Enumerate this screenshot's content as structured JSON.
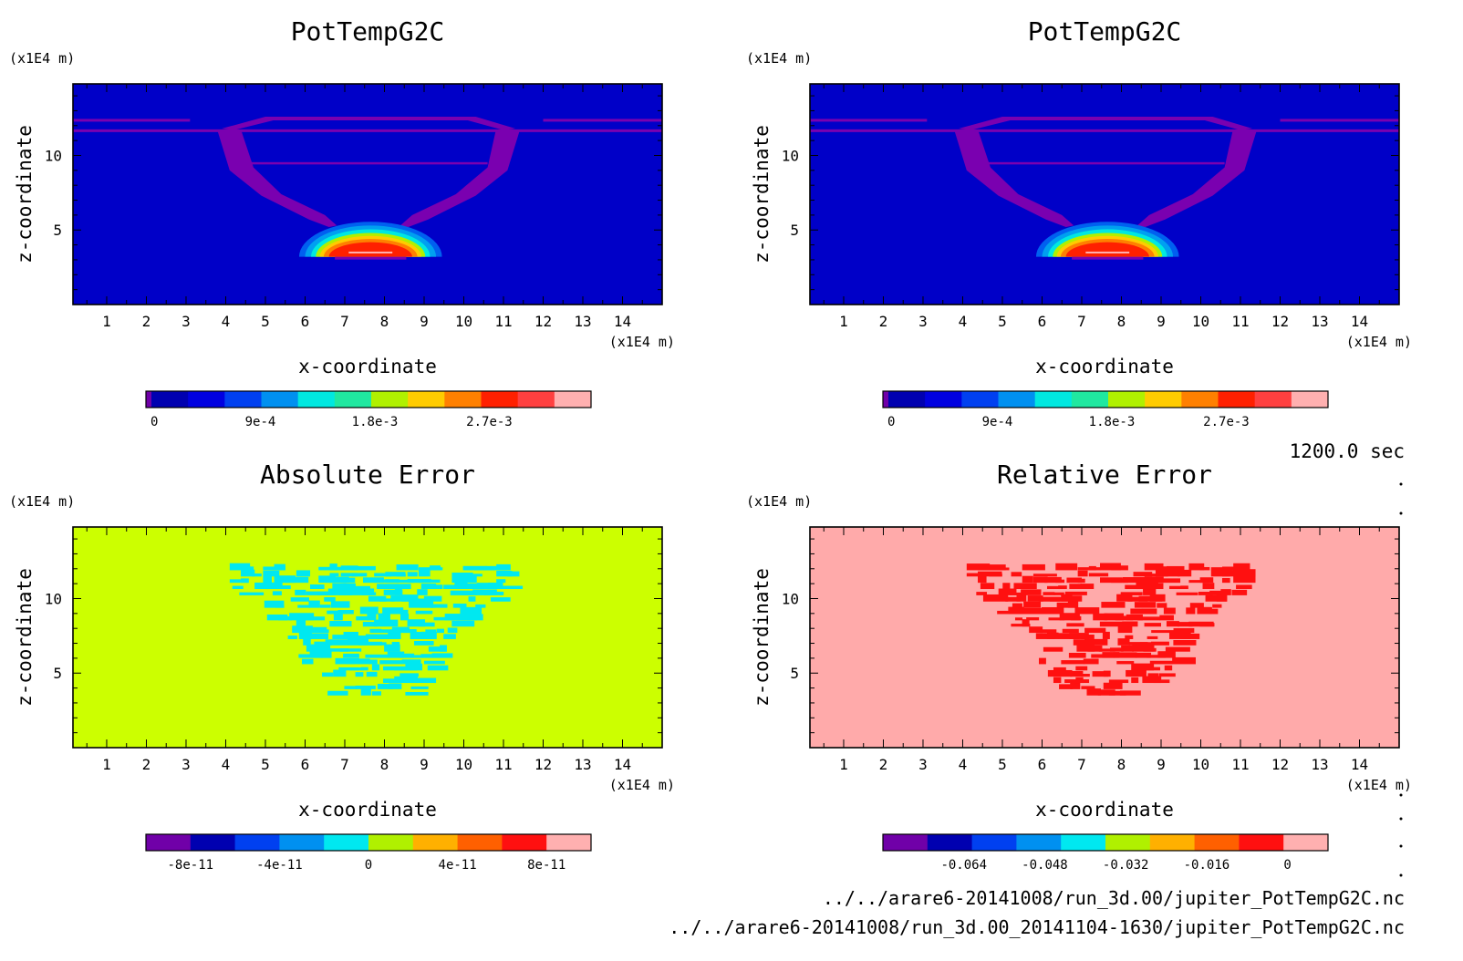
{
  "figure": {
    "time_label": "1200.0 sec",
    "files": [
      "../../arare6-20141008/run_3d.00/jupiter_PotTempG2C.nc",
      "../../arare6-20141008/run_3d.00_20141104-1630/jupiter_PotTempG2C.nc"
    ]
  },
  "chart_data": [
    {
      "type": "heatmap",
      "title": "PotTempG2C",
      "xlabel": "x-coordinate",
      "ylabel": "z-coordinate",
      "x_unit": "(x1E4 m)",
      "z_unit": "(x1E4 m)",
      "xlim": [
        0.15,
        15.0
      ],
      "ylim": [
        0.0,
        14.8
      ],
      "xticks": [
        1,
        2,
        3,
        4,
        5,
        6,
        7,
        8,
        9,
        10,
        11,
        12,
        13,
        14
      ],
      "yticks": [
        5,
        10
      ],
      "background": "#0000c8",
      "field": "plume",
      "colorbar": {
        "colors": [
          "#7000a8",
          "#0000b0",
          "#0000e0",
          "#0040f0",
          "#0090f0",
          "#00e8e0",
          "#20e8a0",
          "#b0f000",
          "#ffcc00",
          "#ff8000",
          "#ff2000",
          "#ff4040",
          "#ffb0b0"
        ],
        "tick_values": [
          "0",
          "9e-4",
          "1.8e-3",
          "2.7e-3"
        ],
        "range": [
          0,
          0.0035
        ]
      }
    },
    {
      "type": "heatmap",
      "title": "PotTempG2C",
      "xlabel": "x-coordinate",
      "ylabel": "z-coordinate",
      "x_unit": "(x1E4 m)",
      "z_unit": "(x1E4 m)",
      "xlim": [
        0.15,
        15.0
      ],
      "ylim": [
        0.0,
        14.8
      ],
      "xticks": [
        1,
        2,
        3,
        4,
        5,
        6,
        7,
        8,
        9,
        10,
        11,
        12,
        13,
        14
      ],
      "yticks": [
        5,
        10
      ],
      "background": "#0000c8",
      "field": "plume",
      "colorbar": {
        "colors": [
          "#7000a8",
          "#0000b0",
          "#0000e0",
          "#0040f0",
          "#0090f0",
          "#00e8e0",
          "#20e8a0",
          "#b0f000",
          "#ffcc00",
          "#ff8000",
          "#ff2000",
          "#ff4040",
          "#ffb0b0"
        ],
        "tick_values": [
          "0",
          "9e-4",
          "1.8e-3",
          "2.7e-3"
        ],
        "range": [
          0,
          0.0035
        ]
      }
    },
    {
      "type": "heatmap",
      "title": "Absolute Error",
      "xlabel": "x-coordinate",
      "ylabel": "z-coordinate",
      "x_unit": "(x1E4 m)",
      "z_unit": "(x1E4 m)",
      "xlim": [
        0.15,
        15.0
      ],
      "ylim": [
        0.0,
        14.8
      ],
      "xticks": [
        1,
        2,
        3,
        4,
        5,
        6,
        7,
        8,
        9,
        10,
        11,
        12,
        13,
        14
      ],
      "yticks": [
        5,
        10
      ],
      "background": "#ccff00",
      "field": "speckle",
      "speckle_color": "#00e8f0",
      "colorbar": {
        "colors": [
          "#7000a8",
          "#0000b0",
          "#0040f0",
          "#0090f0",
          "#00e8f0",
          "#b0f000",
          "#ffb000",
          "#ff6000",
          "#ff1010",
          "#ffb0b0"
        ],
        "tick_values": [
          "-8e-11",
          "-4e-11",
          "0",
          "4e-11",
          "8e-11"
        ],
        "range": [
          -1e-10,
          1e-10
        ]
      }
    },
    {
      "type": "heatmap",
      "title": "Relative Error",
      "xlabel": "x-coordinate",
      "ylabel": "z-coordinate",
      "x_unit": "(x1E4 m)",
      "z_unit": "(x1E4 m)",
      "xlim": [
        0.15,
        15.0
      ],
      "ylim": [
        0.0,
        14.8
      ],
      "xticks": [
        1,
        2,
        3,
        4,
        5,
        6,
        7,
        8,
        9,
        10,
        11,
        12,
        13,
        14
      ],
      "yticks": [
        5,
        10
      ],
      "background": "#ffaaaa",
      "field": "speckle",
      "speckle_color": "#ff1010",
      "colorbar": {
        "colors": [
          "#7000a8",
          "#0000b0",
          "#0040f0",
          "#0090f0",
          "#00e8f0",
          "#b0f000",
          "#ffb000",
          "#ff6000",
          "#ff1010",
          "#ffb0b0"
        ],
        "tick_values": [
          "-0.064",
          "-0.048",
          "-0.032",
          "-0.016",
          "0"
        ],
        "range": [
          -0.08,
          0.008
        ]
      }
    }
  ]
}
